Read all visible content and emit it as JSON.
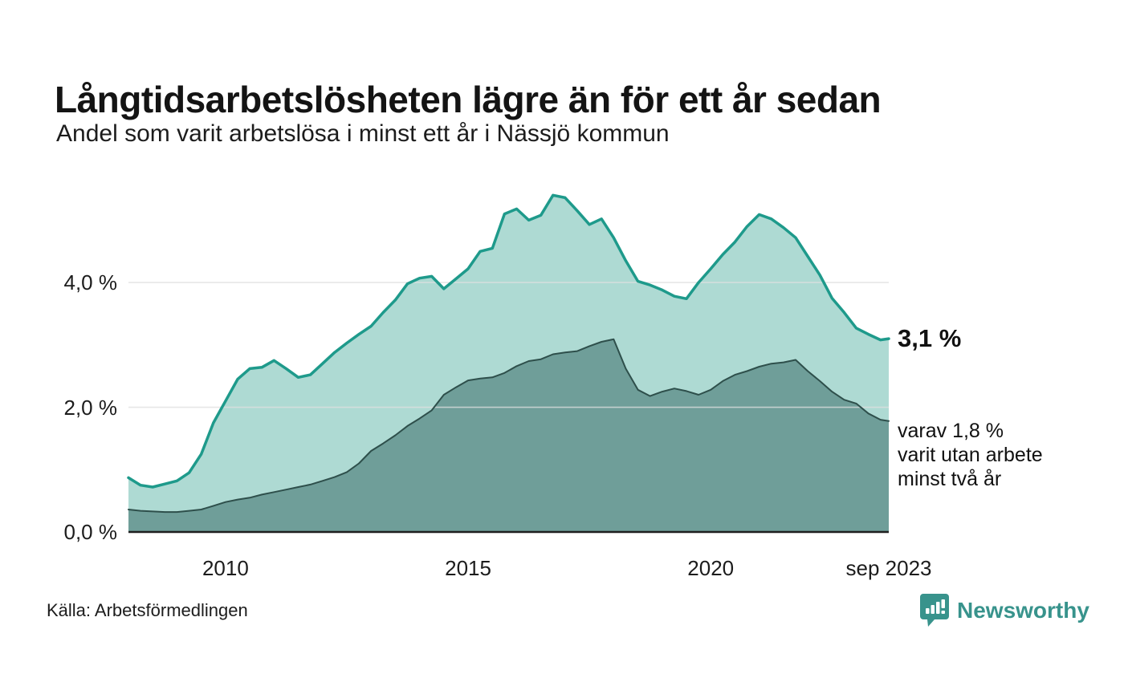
{
  "header": {
    "title": "Långtidsarbetslösheten lägre än för ett år sedan",
    "subtitle": "Andel som varit arbetslösa i minst ett år i Nässjö kommun"
  },
  "annotations": {
    "total_end_label": "3,1 %",
    "two_year_detail": "varav 1,8 %\nvarit utan arbete\nminst två år"
  },
  "footer": {
    "source": "Källa: Arbetsförmedlingen",
    "brand": "Newsworthy",
    "brand_color": "#38938c",
    "brand_chart_icon": "bar-chart-pin-icon"
  },
  "colors": {
    "grid": "#e0e0e0",
    "baseline": "#1f1f1f",
    "text": "#1a1a1a"
  },
  "chart_data": {
    "type": "area",
    "title": "Andel som varit arbetslösa i minst ett år i Nässjö kommun",
    "xlabel": "",
    "ylabel": "",
    "unit": "%",
    "grid": true,
    "x_range": [
      2008,
      2023.67
    ],
    "ylim": [
      0,
      5.7
    ],
    "x_ticks": [
      {
        "label": "2010",
        "year": 2010
      },
      {
        "label": "2015",
        "year": 2015
      },
      {
        "label": "2020",
        "year": 2020
      },
      {
        "label": "sep 2023",
        "year": 2023.67
      }
    ],
    "y_ticks": [
      {
        "label": "4,0 %",
        "value": 4,
        "grid": true
      },
      {
        "label": "2,0 %",
        "value": 2,
        "grid": true
      },
      {
        "label": "0,0 %",
        "value": 0,
        "grid": false
      }
    ],
    "x": [
      2008.0,
      2008.25,
      2008.5,
      2008.75,
      2009.0,
      2009.25,
      2009.5,
      2009.75,
      2010.0,
      2010.25,
      2010.5,
      2010.75,
      2011.0,
      2011.25,
      2011.5,
      2011.75,
      2012.0,
      2012.25,
      2012.5,
      2012.75,
      2013.0,
      2013.25,
      2013.5,
      2013.75,
      2014.0,
      2014.25,
      2014.5,
      2014.75,
      2015.0,
      2015.25,
      2015.5,
      2015.75,
      2016.0,
      2016.25,
      2016.5,
      2016.75,
      2017.0,
      2017.25,
      2017.5,
      2017.75,
      2018.0,
      2018.25,
      2018.5,
      2018.75,
      2019.0,
      2019.25,
      2019.5,
      2019.75,
      2020.0,
      2020.25,
      2020.5,
      2020.75,
      2021.0,
      2021.25,
      2021.5,
      2021.75,
      2022.0,
      2022.25,
      2022.5,
      2022.75,
      2023.0,
      2023.25,
      2023.5,
      2023.67
    ],
    "series": [
      {
        "name": "Andel arbetslösa minst ett år",
        "end_value": 3.1,
        "end_label": "3,1 %",
        "fill": "#aedad3",
        "stroke": "#1e9a8b",
        "stroke_width": 3.5,
        "values": [
          0.87,
          0.75,
          0.72,
          0.77,
          0.82,
          0.95,
          1.25,
          1.75,
          2.1,
          2.45,
          2.62,
          2.64,
          2.75,
          2.62,
          2.48,
          2.52,
          2.7,
          2.88,
          3.03,
          3.17,
          3.3,
          3.52,
          3.72,
          3.98,
          4.07,
          4.1,
          3.9,
          4.06,
          4.22,
          4.5,
          4.55,
          5.1,
          5.18,
          5.0,
          5.08,
          5.4,
          5.36,
          5.15,
          4.93,
          5.02,
          4.72,
          4.35,
          4.02,
          3.96,
          3.88,
          3.78,
          3.74,
          4.0,
          4.22,
          4.45,
          4.65,
          4.9,
          5.09,
          5.02,
          4.88,
          4.72,
          4.42,
          4.12,
          3.75,
          3.52,
          3.27,
          3.17,
          3.08,
          3.1
        ]
      },
      {
        "name": "varav utan arbete minst två år",
        "end_value": 1.78,
        "end_label": "varav 1,8 %",
        "fill": "#6f9e99",
        "stroke": "#2e4f4b",
        "stroke_width": 2,
        "values": [
          0.36,
          0.34,
          0.33,
          0.32,
          0.32,
          0.34,
          0.36,
          0.42,
          0.48,
          0.52,
          0.55,
          0.6,
          0.64,
          0.68,
          0.72,
          0.76,
          0.82,
          0.88,
          0.96,
          1.1,
          1.3,
          1.42,
          1.55,
          1.7,
          1.82,
          1.95,
          2.2,
          2.32,
          2.43,
          2.46,
          2.48,
          2.55,
          2.66,
          2.74,
          2.77,
          2.85,
          2.88,
          2.9,
          2.98,
          3.05,
          3.09,
          2.62,
          2.28,
          2.18,
          2.25,
          2.3,
          2.26,
          2.2,
          2.28,
          2.42,
          2.52,
          2.58,
          2.65,
          2.7,
          2.72,
          2.76,
          2.58,
          2.42,
          2.25,
          2.12,
          2.06,
          1.9,
          1.8,
          1.78
        ]
      }
    ],
    "legend_position": "none"
  }
}
